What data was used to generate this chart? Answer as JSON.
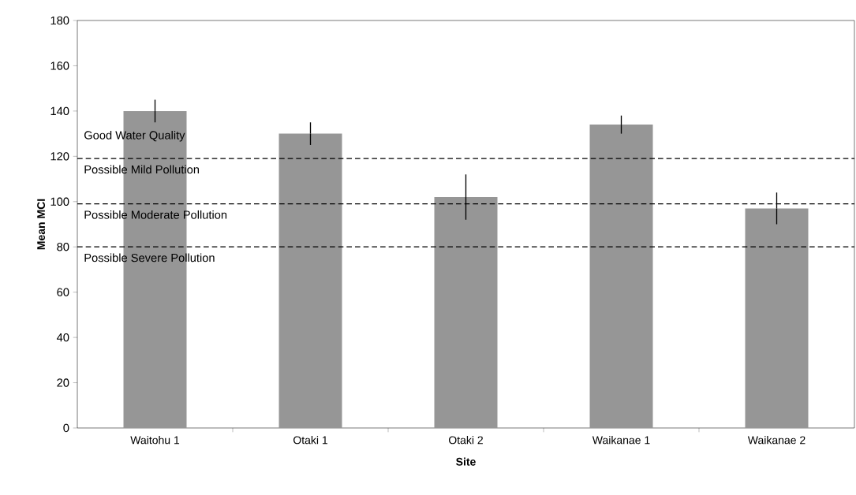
{
  "chart_data": {
    "type": "bar",
    "xlabel": "Site",
    "ylabel": "Mean MCI",
    "categories": [
      "Waitohu 1",
      "Otaki 1",
      "Otaki 2",
      "Waikanae 1",
      "Waikanae 2"
    ],
    "values": [
      140,
      130,
      102,
      134,
      97
    ],
    "errors": [
      5,
      5,
      10,
      4,
      7
    ],
    "color": "#969696",
    "ylim": [
      0,
      180
    ],
    "yticks": [
      0,
      20,
      40,
      60,
      80,
      100,
      120,
      140,
      160,
      180
    ],
    "ref_lines": [
      {
        "axis": "y",
        "value": 119,
        "label": "Possible Mild Pollution",
        "line_style": "dashed",
        "color": "#000000"
      },
      {
        "axis": "y",
        "value": 99,
        "label": "Possible Moderate Pollution",
        "line_style": "dashed",
        "color": "#000000"
      },
      {
        "axis": "y",
        "value": 80,
        "label": "Possible Severe Pollution",
        "line_style": "dashed",
        "color": "#000000"
      }
    ],
    "annotations": [
      "Good Water Quality"
    ]
  }
}
